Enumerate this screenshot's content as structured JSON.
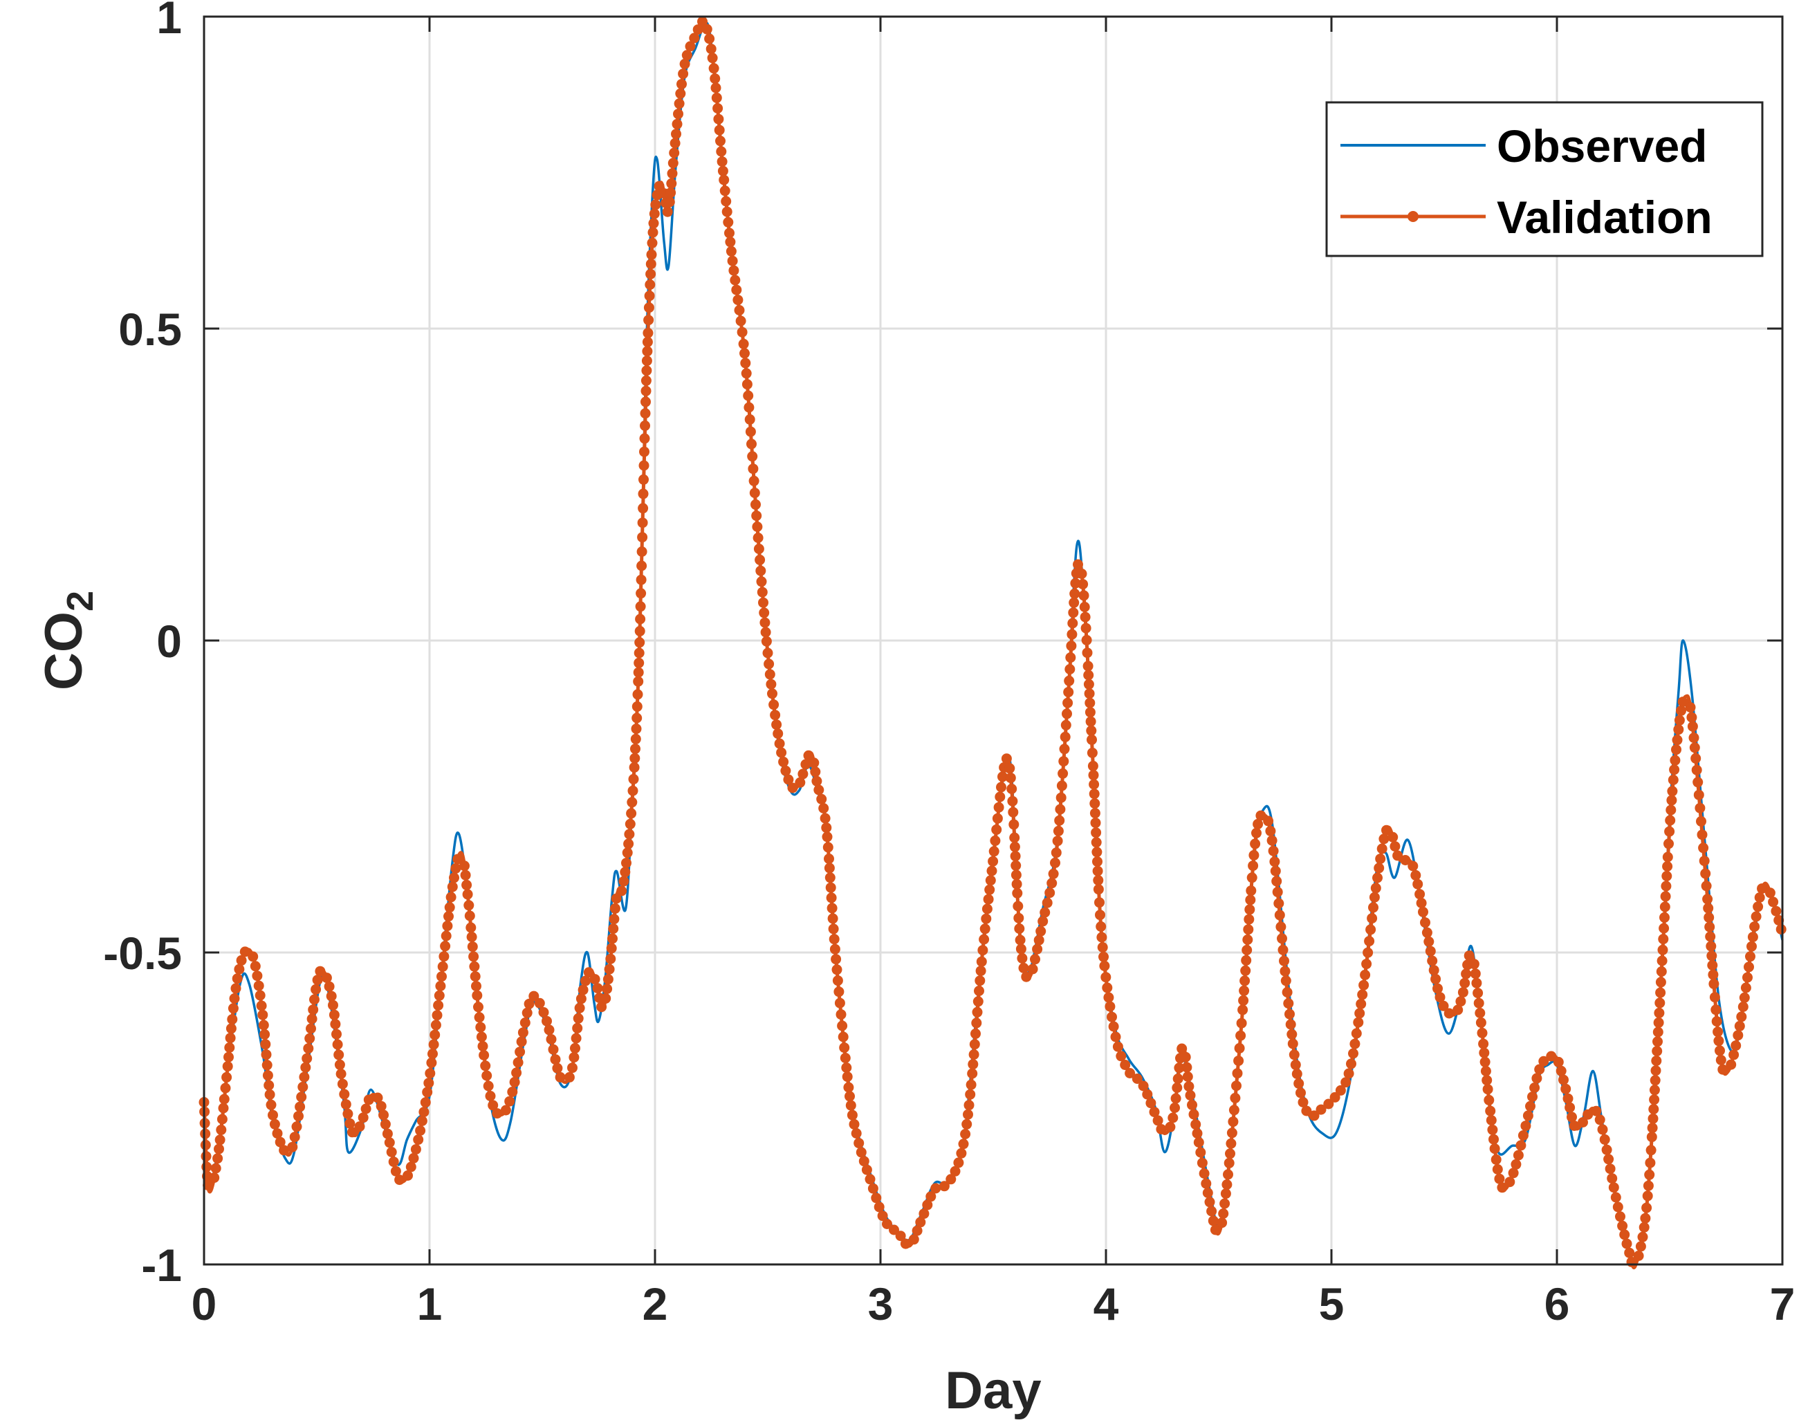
{
  "chart_data": {
    "type": "line",
    "xlabel": "Day",
    "ylabel_main": "CO",
    "ylabel_sub": "2",
    "xlim": [
      0,
      7
    ],
    "ylim": [
      -1,
      1
    ],
    "xticks": [
      0,
      1,
      2,
      3,
      4,
      5,
      6,
      7
    ],
    "xtick_labels": [
      "0",
      "1",
      "2",
      "3",
      "4",
      "5",
      "6",
      "7"
    ],
    "yticks": [
      -1,
      -0.5,
      0,
      0.5,
      1
    ],
    "ytick_labels": [
      "-1",
      "-0.5",
      "0",
      "0.5",
      "1"
    ],
    "grid": true,
    "legend_position": "top-right",
    "colors": {
      "observed": "#0072BD",
      "validation": "#D95319",
      "grid": "#dfdfdf",
      "axis": "#262626"
    },
    "series": [
      {
        "name": "Observed",
        "style": "line",
        "points": [
          [
            0,
            -0.74
          ],
          [
            0.02,
            -0.87
          ],
          [
            0.06,
            -0.82
          ],
          [
            0.1,
            -0.7
          ],
          [
            0.16,
            -0.55
          ],
          [
            0.2,
            -0.55
          ],
          [
            0.26,
            -0.66
          ],
          [
            0.3,
            -0.76
          ],
          [
            0.36,
            -0.83
          ],
          [
            0.4,
            -0.82
          ],
          [
            0.46,
            -0.68
          ],
          [
            0.52,
            -0.54
          ],
          [
            0.56,
            -0.58
          ],
          [
            0.62,
            -0.74
          ],
          [
            0.64,
            -0.82
          ],
          [
            0.7,
            -0.78
          ],
          [
            0.74,
            -0.72
          ],
          [
            0.8,
            -0.78
          ],
          [
            0.86,
            -0.84
          ],
          [
            0.9,
            -0.8
          ],
          [
            0.94,
            -0.77
          ],
          [
            1.0,
            -0.73
          ],
          [
            1.05,
            -0.55
          ],
          [
            1.1,
            -0.36
          ],
          [
            1.13,
            -0.31
          ],
          [
            1.17,
            -0.41
          ],
          [
            1.22,
            -0.6
          ],
          [
            1.27,
            -0.74
          ],
          [
            1.32,
            -0.8
          ],
          [
            1.36,
            -0.77
          ],
          [
            1.42,
            -0.64
          ],
          [
            1.46,
            -0.58
          ],
          [
            1.52,
            -0.62
          ],
          [
            1.58,
            -0.71
          ],
          [
            1.63,
            -0.69
          ],
          [
            1.67,
            -0.55
          ],
          [
            1.7,
            -0.5
          ],
          [
            1.73,
            -0.58
          ],
          [
            1.75,
            -0.61
          ],
          [
            1.78,
            -0.54
          ],
          [
            1.81,
            -0.41
          ],
          [
            1.83,
            -0.37
          ],
          [
            1.87,
            -0.43
          ],
          [
            1.9,
            -0.25
          ],
          [
            1.93,
            -0.02
          ],
          [
            1.96,
            0.45
          ],
          [
            1.99,
            0.72
          ],
          [
            2.01,
            0.77
          ],
          [
            2.04,
            0.64
          ],
          [
            2.06,
            0.6
          ],
          [
            2.09,
            0.75
          ],
          [
            2.13,
            0.9
          ],
          [
            2.18,
            0.95
          ],
          [
            2.23,
            0.99
          ],
          [
            2.26,
            0.92
          ],
          [
            2.3,
            0.76
          ],
          [
            2.34,
            0.62
          ],
          [
            2.4,
            0.45
          ],
          [
            2.45,
            0.2
          ],
          [
            2.5,
            -0.02
          ],
          [
            2.55,
            -0.17
          ],
          [
            2.6,
            -0.24
          ],
          [
            2.64,
            -0.24
          ],
          [
            2.68,
            -0.2
          ],
          [
            2.72,
            -0.24
          ],
          [
            2.76,
            -0.3
          ],
          [
            2.8,
            -0.5
          ],
          [
            2.86,
            -0.71
          ],
          [
            2.9,
            -0.79
          ],
          [
            2.96,
            -0.86
          ],
          [
            3.02,
            -0.92
          ],
          [
            3.08,
            -0.95
          ],
          [
            3.13,
            -0.96
          ],
          [
            3.18,
            -0.92
          ],
          [
            3.24,
            -0.87
          ],
          [
            3.3,
            -0.87
          ],
          [
            3.36,
            -0.82
          ],
          [
            3.4,
            -0.7
          ],
          [
            3.45,
            -0.5
          ],
          [
            3.5,
            -0.34
          ],
          [
            3.55,
            -0.21
          ],
          [
            3.58,
            -0.21
          ],
          [
            3.62,
            -0.48
          ],
          [
            3.66,
            -0.53
          ],
          [
            3.72,
            -0.43
          ],
          [
            3.78,
            -0.33
          ],
          [
            3.83,
            -0.1
          ],
          [
            3.87,
            0.15
          ],
          [
            3.9,
            0.08
          ],
          [
            3.94,
            -0.18
          ],
          [
            3.98,
            -0.47
          ],
          [
            4.04,
            -0.62
          ],
          [
            4.1,
            -0.67
          ],
          [
            4.16,
            -0.7
          ],
          [
            4.22,
            -0.75
          ],
          [
            4.26,
            -0.82
          ],
          [
            4.3,
            -0.76
          ],
          [
            4.33,
            -0.66
          ],
          [
            4.36,
            -0.69
          ],
          [
            4.4,
            -0.76
          ],
          [
            4.46,
            -0.88
          ],
          [
            4.5,
            -0.94
          ],
          [
            4.54,
            -0.86
          ],
          [
            4.6,
            -0.62
          ],
          [
            4.66,
            -0.34
          ],
          [
            4.7,
            -0.27
          ],
          [
            4.74,
            -0.3
          ],
          [
            4.8,
            -0.52
          ],
          [
            4.85,
            -0.68
          ],
          [
            4.9,
            -0.76
          ],
          [
            4.96,
            -0.79
          ],
          [
            5.02,
            -0.79
          ],
          [
            5.08,
            -0.71
          ],
          [
            5.14,
            -0.56
          ],
          [
            5.2,
            -0.37
          ],
          [
            5.24,
            -0.34
          ],
          [
            5.28,
            -0.38
          ],
          [
            5.34,
            -0.32
          ],
          [
            5.4,
            -0.43
          ],
          [
            5.46,
            -0.56
          ],
          [
            5.52,
            -0.63
          ],
          [
            5.58,
            -0.56
          ],
          [
            5.62,
            -0.49
          ],
          [
            5.66,
            -0.6
          ],
          [
            5.7,
            -0.74
          ],
          [
            5.74,
            -0.82
          ],
          [
            5.8,
            -0.81
          ],
          [
            5.86,
            -0.8
          ],
          [
            5.92,
            -0.7
          ],
          [
            5.96,
            -0.68
          ],
          [
            6.0,
            -0.68
          ],
          [
            6.04,
            -0.74
          ],
          [
            6.08,
            -0.81
          ],
          [
            6.12,
            -0.76
          ],
          [
            6.16,
            -0.69
          ],
          [
            6.2,
            -0.77
          ],
          [
            6.26,
            -0.89
          ],
          [
            6.32,
            -0.98
          ],
          [
            6.36,
            -0.99
          ],
          [
            6.4,
            -0.9
          ],
          [
            6.45,
            -0.62
          ],
          [
            6.5,
            -0.28
          ],
          [
            6.54,
            -0.08
          ],
          [
            6.56,
            0.0
          ],
          [
            6.6,
            -0.09
          ],
          [
            6.66,
            -0.34
          ],
          [
            6.72,
            -0.58
          ],
          [
            6.78,
            -0.66
          ],
          [
            6.82,
            -0.6
          ],
          [
            6.88,
            -0.46
          ],
          [
            6.92,
            -0.39
          ],
          [
            6.96,
            -0.42
          ],
          [
            7.0,
            -0.48
          ]
        ]
      },
      {
        "name": "Validation",
        "style": "line-with-dots",
        "points": [
          [
            0,
            -0.74
          ],
          [
            0.02,
            -0.88
          ],
          [
            0.06,
            -0.83
          ],
          [
            0.1,
            -0.7
          ],
          [
            0.14,
            -0.56
          ],
          [
            0.18,
            -0.5
          ],
          [
            0.22,
            -0.51
          ],
          [
            0.26,
            -0.6
          ],
          [
            0.3,
            -0.75
          ],
          [
            0.36,
            -0.82
          ],
          [
            0.4,
            -0.8
          ],
          [
            0.46,
            -0.66
          ],
          [
            0.5,
            -0.55
          ],
          [
            0.53,
            -0.53
          ],
          [
            0.57,
            -0.58
          ],
          [
            0.61,
            -0.7
          ],
          [
            0.66,
            -0.79
          ],
          [
            0.7,
            -0.77
          ],
          [
            0.74,
            -0.73
          ],
          [
            0.78,
            -0.74
          ],
          [
            0.82,
            -0.8
          ],
          [
            0.86,
            -0.86
          ],
          [
            0.9,
            -0.86
          ],
          [
            0.95,
            -0.8
          ],
          [
            1.0,
            -0.7
          ],
          [
            1.05,
            -0.55
          ],
          [
            1.1,
            -0.4
          ],
          [
            1.14,
            -0.34
          ],
          [
            1.17,
            -0.41
          ],
          [
            1.22,
            -0.6
          ],
          [
            1.27,
            -0.73
          ],
          [
            1.32,
            -0.76
          ],
          [
            1.37,
            -0.72
          ],
          [
            1.42,
            -0.62
          ],
          [
            1.46,
            -0.57
          ],
          [
            1.52,
            -0.61
          ],
          [
            1.58,
            -0.7
          ],
          [
            1.63,
            -0.69
          ],
          [
            1.67,
            -0.58
          ],
          [
            1.71,
            -0.53
          ],
          [
            1.74,
            -0.55
          ],
          [
            1.77,
            -0.59
          ],
          [
            1.8,
            -0.52
          ],
          [
            1.83,
            -0.41
          ],
          [
            1.86,
            -0.39
          ],
          [
            1.9,
            -0.25
          ],
          [
            1.93,
            -0.02
          ],
          [
            1.96,
            0.4
          ],
          [
            1.99,
            0.65
          ],
          [
            2.02,
            0.73
          ],
          [
            2.04,
            0.72
          ],
          [
            2.06,
            0.69
          ],
          [
            2.09,
            0.8
          ],
          [
            2.13,
            0.92
          ],
          [
            2.18,
            0.97
          ],
          [
            2.22,
            0.99
          ],
          [
            2.26,
            0.92
          ],
          [
            2.3,
            0.76
          ],
          [
            2.34,
            0.62
          ],
          [
            2.4,
            0.45
          ],
          [
            2.45,
            0.2
          ],
          [
            2.5,
            -0.02
          ],
          [
            2.55,
            -0.16
          ],
          [
            2.6,
            -0.23
          ],
          [
            2.64,
            -0.23
          ],
          [
            2.69,
            -0.18
          ],
          [
            2.72,
            -0.23
          ],
          [
            2.76,
            -0.3
          ],
          [
            2.8,
            -0.5
          ],
          [
            2.86,
            -0.72
          ],
          [
            2.9,
            -0.8
          ],
          [
            2.96,
            -0.87
          ],
          [
            3.02,
            -0.93
          ],
          [
            3.08,
            -0.95
          ],
          [
            3.13,
            -0.97
          ],
          [
            3.18,
            -0.93
          ],
          [
            3.24,
            -0.88
          ],
          [
            3.3,
            -0.87
          ],
          [
            3.36,
            -0.82
          ],
          [
            3.4,
            -0.72
          ],
          [
            3.45,
            -0.51
          ],
          [
            3.5,
            -0.35
          ],
          [
            3.55,
            -0.2
          ],
          [
            3.58,
            -0.23
          ],
          [
            3.62,
            -0.48
          ],
          [
            3.66,
            -0.54
          ],
          [
            3.72,
            -0.45
          ],
          [
            3.78,
            -0.34
          ],
          [
            3.83,
            -0.1
          ],
          [
            3.87,
            0.11
          ],
          [
            3.9,
            0.08
          ],
          [
            3.94,
            -0.18
          ],
          [
            3.98,
            -0.47
          ],
          [
            4.04,
            -0.63
          ],
          [
            4.1,
            -0.69
          ],
          [
            4.16,
            -0.71
          ],
          [
            4.22,
            -0.76
          ],
          [
            4.26,
            -0.79
          ],
          [
            4.3,
            -0.76
          ],
          [
            4.34,
            -0.65
          ],
          [
            4.37,
            -0.72
          ],
          [
            4.4,
            -0.78
          ],
          [
            4.46,
            -0.9
          ],
          [
            4.5,
            -0.95
          ],
          [
            4.54,
            -0.86
          ],
          [
            4.6,
            -0.62
          ],
          [
            4.66,
            -0.33
          ],
          [
            4.7,
            -0.28
          ],
          [
            4.74,
            -0.33
          ],
          [
            4.8,
            -0.55
          ],
          [
            4.85,
            -0.7
          ],
          [
            4.9,
            -0.76
          ],
          [
            4.96,
            -0.75
          ],
          [
            5.02,
            -0.73
          ],
          [
            5.08,
            -0.69
          ],
          [
            5.14,
            -0.56
          ],
          [
            5.2,
            -0.39
          ],
          [
            5.25,
            -0.3
          ],
          [
            5.3,
            -0.35
          ],
          [
            5.36,
            -0.36
          ],
          [
            5.42,
            -0.46
          ],
          [
            5.48,
            -0.57
          ],
          [
            5.54,
            -0.6
          ],
          [
            5.58,
            -0.57
          ],
          [
            5.62,
            -0.5
          ],
          [
            5.66,
            -0.6
          ],
          [
            5.7,
            -0.74
          ],
          [
            5.75,
            -0.87
          ],
          [
            5.8,
            -0.86
          ],
          [
            5.86,
            -0.78
          ],
          [
            5.92,
            -0.69
          ],
          [
            5.96,
            -0.67
          ],
          [
            6.0,
            -0.67
          ],
          [
            6.04,
            -0.72
          ],
          [
            6.08,
            -0.78
          ],
          [
            6.12,
            -0.77
          ],
          [
            6.16,
            -0.75
          ],
          [
            6.2,
            -0.78
          ],
          [
            6.26,
            -0.89
          ],
          [
            6.32,
            -0.98
          ],
          [
            6.35,
            -1.0
          ],
          [
            6.4,
            -0.9
          ],
          [
            6.45,
            -0.62
          ],
          [
            6.5,
            -0.3
          ],
          [
            6.54,
            -0.14
          ],
          [
            6.57,
            -0.09
          ],
          [
            6.6,
            -0.13
          ],
          [
            6.66,
            -0.38
          ],
          [
            6.72,
            -0.65
          ],
          [
            6.76,
            -0.69
          ],
          [
            6.82,
            -0.6
          ],
          [
            6.88,
            -0.45
          ],
          [
            6.92,
            -0.39
          ],
          [
            6.96,
            -0.42
          ],
          [
            7.0,
            -0.47
          ]
        ]
      }
    ]
  }
}
